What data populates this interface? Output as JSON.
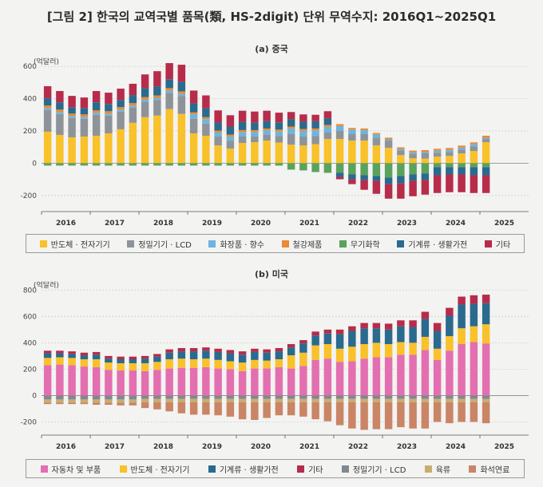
{
  "title": "[그림 2] 한국의 교역국별 품목(類, HS-2digit) 단위 무역수지: 2016Q1~2025Q1",
  "chart_data": [
    {
      "type": "stacked-bar",
      "title": "(a) 중국",
      "unit": "(억달러)",
      "ylim": [
        -300,
        650
      ],
      "yticks": [
        "600",
        "400",
        "200",
        "0",
        "-200"
      ],
      "yticks_values": [
        600,
        400,
        200,
        0,
        -200
      ],
      "years": [
        "2016",
        "2017",
        "2018",
        "2019",
        "2020",
        "2021",
        "2022",
        "2023",
        "2024",
        "2025"
      ],
      "grid": true,
      "legend_position": "bottom",
      "series": [
        {
          "name": "반도체 · 전자기기",
          "color": "#f9c12a",
          "values": [
            195,
            175,
            160,
            165,
            170,
            185,
            210,
            250,
            285,
            295,
            335,
            305,
            185,
            170,
            110,
            90,
            125,
            130,
            140,
            128,
            115,
            110,
            118,
            150,
            150,
            140,
            140,
            110,
            95,
            50,
            30,
            28,
            40,
            45,
            60,
            75,
            130
          ]
        },
        {
          "name": "정밀기기 · LCD",
          "color": "#8e939a",
          "values": [
            135,
            130,
            120,
            110,
            130,
            110,
            110,
            95,
            95,
            95,
            100,
            110,
            90,
            75,
            55,
            50,
            40,
            35,
            35,
            40,
            65,
            55,
            50,
            40,
            50,
            40,
            40,
            45,
            45,
            30,
            30,
            35,
            25,
            25,
            25,
            30,
            20
          ]
        },
        {
          "name": "화장품 · 향수",
          "color": "#6fb4dd",
          "values": [
            12,
            12,
            12,
            12,
            12,
            12,
            12,
            12,
            15,
            15,
            15,
            15,
            28,
            28,
            25,
            25,
            28,
            28,
            28,
            28,
            35,
            35,
            35,
            35,
            30,
            28,
            25,
            22,
            8,
            8,
            8,
            8,
            12,
            12,
            12,
            12,
            8
          ]
        },
        {
          "name": "철강제품",
          "color": "#ea8a34",
          "values": [
            15,
            15,
            15,
            15,
            15,
            15,
            15,
            15,
            15,
            15,
            15,
            15,
            12,
            12,
            12,
            12,
            12,
            12,
            12,
            12,
            12,
            12,
            12,
            12,
            12,
            10,
            10,
            10,
            10,
            10,
            10,
            10,
            12,
            12,
            12,
            12,
            12
          ]
        },
        {
          "name": "무기화학",
          "color": "#5aa25d",
          "values": [
            -15,
            -15,
            -15,
            -15,
            -15,
            -15,
            -15,
            -15,
            -15,
            -15,
            -15,
            -15,
            -15,
            -15,
            -15,
            -15,
            -15,
            -15,
            -15,
            -15,
            -40,
            -45,
            -55,
            -60,
            -60,
            -70,
            -75,
            -80,
            -90,
            -80,
            -70,
            -65,
            -25,
            -25,
            -25,
            -25,
            -25
          ]
        },
        {
          "name": "기계류 · 생활가전",
          "color": "#2a6a8e",
          "values": [
            45,
            45,
            40,
            40,
            50,
            45,
            45,
            50,
            55,
            55,
            55,
            60,
            55,
            55,
            50,
            50,
            50,
            45,
            45,
            45,
            45,
            45,
            45,
            40,
            -25,
            -30,
            -30,
            -30,
            -40,
            -45,
            -40,
            -40,
            -50,
            -45,
            -45,
            -50,
            -50
          ]
        },
        {
          "name": "기타",
          "color": "#b72c4a",
          "values": [
            75,
            70,
            70,
            65,
            70,
            70,
            70,
            70,
            85,
            95,
            100,
            105,
            80,
            80,
            75,
            70,
            70,
            70,
            65,
            60,
            45,
            45,
            40,
            45,
            -15,
            -30,
            -60,
            -80,
            -90,
            -95,
            -95,
            -90,
            -110,
            -110,
            -110,
            -110,
            -110
          ]
        }
      ]
    },
    {
      "type": "stacked-bar",
      "title": "(b) 미국",
      "unit": "(억달러)",
      "ylim": [
        -300,
        850
      ],
      "yticks": [
        "800",
        "600",
        "400",
        "200",
        "0",
        "-200"
      ],
      "yticks_values": [
        800,
        600,
        400,
        200,
        0,
        -200
      ],
      "years": [
        "2016",
        "2017",
        "2018",
        "2019",
        "2020",
        "2021",
        "2022",
        "2023",
        "2024",
        "2025"
      ],
      "grid": true,
      "legend_position": "bottom",
      "series": [
        {
          "name": "자동차 및 부품",
          "color": "#e36fb0",
          "values": [
            230,
            235,
            230,
            220,
            215,
            195,
            190,
            190,
            185,
            195,
            205,
            210,
            210,
            215,
            205,
            200,
            185,
            205,
            205,
            215,
            205,
            225,
            270,
            280,
            255,
            260,
            280,
            290,
            290,
            310,
            310,
            345,
            270,
            340,
            390,
            405,
            395
          ]
        },
        {
          "name": "반도체 · 전자기기",
          "color": "#f9c12a",
          "values": [
            55,
            55,
            55,
            55,
            60,
            55,
            55,
            55,
            60,
            60,
            70,
            70,
            65,
            65,
            65,
            60,
            65,
            65,
            60,
            60,
            100,
            100,
            110,
            110,
            100,
            110,
            110,
            110,
            100,
            95,
            90,
            100,
            85,
            110,
            120,
            120,
            145
          ]
        },
        {
          "name": "기계류 · 생활가전",
          "color": "#2a6a8e",
          "values": [
            35,
            30,
            30,
            30,
            35,
            30,
            30,
            30,
            35,
            40,
            50,
            55,
            60,
            60,
            60,
            60,
            60,
            60,
            60,
            60,
            60,
            70,
            75,
            80,
            110,
            120,
            120,
            110,
            110,
            120,
            120,
            135,
            135,
            155,
            180,
            170,
            160
          ]
        },
        {
          "name": "기타",
          "color": "#b72c4a",
          "values": [
            20,
            20,
            20,
            20,
            20,
            20,
            20,
            20,
            20,
            20,
            25,
            25,
            25,
            25,
            25,
            25,
            25,
            25,
            25,
            25,
            25,
            25,
            30,
            30,
            35,
            35,
            40,
            40,
            45,
            45,
            50,
            55,
            60,
            60,
            60,
            65,
            65
          ]
        },
        {
          "name": "정밀기기 · LCD",
          "color": "#808890",
          "values": [
            -30,
            -30,
            -30,
            -30,
            -30,
            -30,
            -30,
            -30,
            -25,
            -25,
            -25,
            -25,
            -25,
            -25,
            -25,
            -25,
            -25,
            -25,
            -25,
            -25,
            -25,
            -25,
            -25,
            -25,
            -25,
            -25,
            -25,
            -25,
            -25,
            -25,
            -25,
            -25,
            -25,
            -25,
            -25,
            -25,
            -25
          ]
        },
        {
          "name": "육류",
          "color": "#c8ad72",
          "values": [
            -25,
            -25,
            -25,
            -25,
            -25,
            -25,
            -25,
            -25,
            -25,
            -25,
            -25,
            -25,
            -25,
            -25,
            -25,
            -25,
            -25,
            -25,
            -25,
            -25,
            -25,
            -25,
            -25,
            -25,
            -25,
            -25,
            -25,
            -25,
            -25,
            -25,
            -25,
            -25,
            -25,
            -25,
            -25,
            -25,
            -25
          ]
        },
        {
          "name": "화석연료",
          "color": "#c98565",
          "values": [
            -10,
            -10,
            -10,
            -10,
            -15,
            -15,
            -20,
            -20,
            -45,
            -55,
            -70,
            -85,
            -95,
            -95,
            -100,
            -110,
            -130,
            -135,
            -120,
            -100,
            -100,
            -110,
            -130,
            -145,
            -175,
            -200,
            -210,
            -205,
            -205,
            -190,
            -200,
            -200,
            -150,
            -160,
            -150,
            -150,
            -160
          ]
        }
      ]
    }
  ]
}
